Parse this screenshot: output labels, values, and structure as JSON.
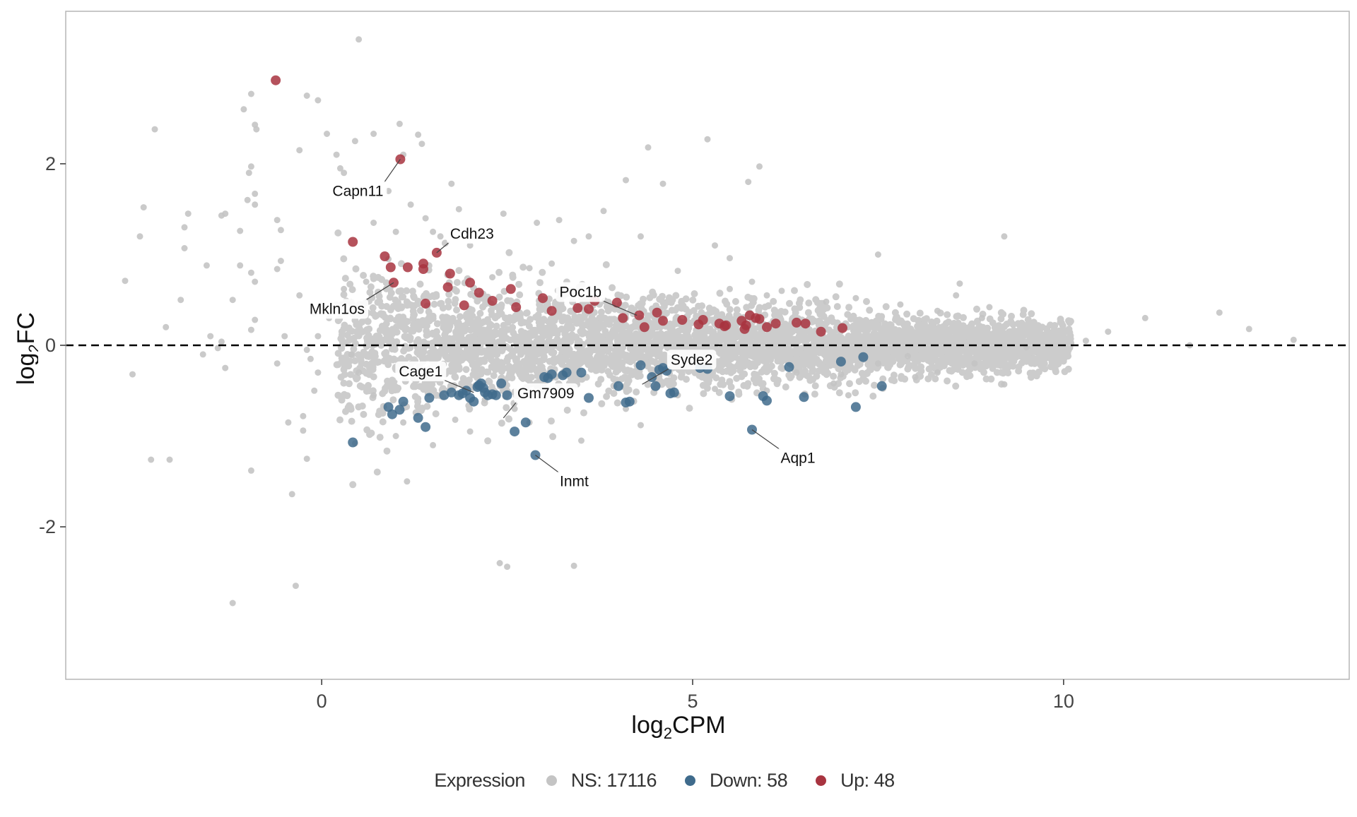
{
  "chart_data": {
    "type": "scatter",
    "xlabel": "log2CPM",
    "ylabel": "log2FC",
    "xlabel_parts": {
      "base": "log",
      "sub": "2",
      "rest": "CPM"
    },
    "ylabel_parts": {
      "base": "log",
      "sub": "2",
      "rest": "FC"
    },
    "xlim": [
      -3.45,
      13.85
    ],
    "ylim": [
      -3.68,
      3.68
    ],
    "xticks": [
      0,
      5,
      10
    ],
    "yticks": [
      -2,
      0,
      2
    ],
    "xtick_labels": [
      "0",
      "5",
      "10"
    ],
    "ytick_labels": [
      "-2",
      "0",
      "2"
    ],
    "threshold_line": {
      "y": 0,
      "style": "dashed"
    },
    "grid": false,
    "legend": {
      "title": "Expression",
      "position": "bottom",
      "entries": [
        {
          "label": "NS: 17116",
          "color": "#c4c4c4"
        },
        {
          "label": "Down: 58",
          "color": "#3f6b8c"
        },
        {
          "label": "Up: 48",
          "color": "#a83440"
        }
      ]
    },
    "series": [
      {
        "name": "NS",
        "color": "#c4c4c4",
        "points": [
          [
            0.5,
            3.37
          ],
          [
            -0.95,
            2.77
          ],
          [
            -1.05,
            2.6
          ],
          [
            -0.9,
            2.43
          ],
          [
            -0.88,
            2.38
          ],
          [
            -2.25,
            2.38
          ],
          [
            1.05,
            2.44
          ],
          [
            0.7,
            2.33
          ],
          [
            -0.2,
            2.75
          ],
          [
            -0.05,
            2.7
          ],
          [
            0.07,
            2.33
          ],
          [
            1.3,
            2.32
          ],
          [
            1.35,
            2.22
          ],
          [
            5.2,
            2.27
          ],
          [
            4.4,
            2.18
          ],
          [
            5.9,
            1.97
          ],
          [
            5.75,
            1.8
          ],
          [
            1.75,
            1.78
          ],
          [
            0.25,
            1.95
          ],
          [
            0.3,
            1.9
          ],
          [
            -1.8,
            1.45
          ],
          [
            -1.3,
            1.45
          ],
          [
            -1.35,
            1.43
          ],
          [
            -2.4,
            1.52
          ],
          [
            -1.85,
            1.3
          ],
          [
            -2.45,
            1.2
          ],
          [
            -0.95,
            1.97
          ],
          [
            -0.98,
            1.9
          ],
          [
            -0.9,
            1.67
          ],
          [
            -1.0,
            1.6
          ],
          [
            -0.9,
            1.55
          ],
          [
            -0.6,
            1.38
          ],
          [
            -0.55,
            1.27
          ],
          [
            -1.1,
            1.26
          ],
          [
            -1.85,
            1.07
          ],
          [
            -1.55,
            0.88
          ],
          [
            -1.1,
            0.88
          ],
          [
            -0.95,
            0.8
          ],
          [
            -2.65,
            0.71
          ],
          [
            -0.9,
            0.7
          ],
          [
            -0.6,
            0.84
          ],
          [
            -0.55,
            0.93
          ],
          [
            -0.9,
            0.28
          ],
          [
            -0.95,
            0.17
          ],
          [
            -1.35,
            0.04
          ],
          [
            -1.4,
            -0.03
          ],
          [
            -1.6,
            -0.1
          ],
          [
            -0.2,
            -0.05
          ],
          [
            -0.05,
            -0.3
          ],
          [
            -0.1,
            -0.5
          ],
          [
            -2.55,
            -0.32
          ],
          [
            -1.3,
            -0.25
          ],
          [
            -0.45,
            -0.85
          ],
          [
            -0.25,
            -0.78
          ],
          [
            -0.25,
            -0.94
          ],
          [
            -2.3,
            -1.26
          ],
          [
            -2.05,
            -1.26
          ],
          [
            -0.95,
            -1.38
          ],
          [
            -0.2,
            -1.25
          ],
          [
            -0.4,
            -1.64
          ],
          [
            -0.35,
            -2.65
          ],
          [
            -1.2,
            -2.84
          ],
          [
            2.4,
            -2.4
          ],
          [
            2.5,
            -2.44
          ],
          [
            3.4,
            -2.43
          ],
          [
            1.15,
            -1.5
          ],
          [
            0.45,
            -1.08
          ],
          [
            1.0,
            -1.0
          ],
          [
            2.0,
            -0.95
          ],
          [
            3.5,
            -1.05
          ],
          [
            4.3,
            -0.88
          ],
          [
            1.8,
            -0.82
          ],
          [
            4.1,
            -0.7
          ],
          [
            2.8,
            -0.85
          ],
          [
            4.6,
            1.78
          ],
          [
            4.1,
            1.82
          ],
          [
            3.8,
            1.48
          ],
          [
            4.3,
            1.2
          ],
          [
            3.2,
            1.38
          ],
          [
            3.6,
            1.2
          ],
          [
            5.3,
            1.1
          ],
          [
            5.5,
            0.96
          ],
          [
            9.2,
            1.2
          ],
          [
            7.5,
            1.0
          ],
          [
            8.6,
            0.68
          ],
          [
            9.0,
            0.42
          ],
          [
            8.55,
            0.55
          ],
          [
            11.1,
            0.3
          ],
          [
            12.1,
            0.36
          ],
          [
            12.5,
            0.18
          ],
          [
            13.1,
            0.06
          ],
          [
            10.6,
            0.15
          ],
          [
            11.7,
            0.0
          ],
          [
            9.5,
            -0.02
          ],
          [
            10.3,
            0.05
          ],
          [
            9.2,
            -0.43
          ],
          [
            8.3,
            -0.3
          ],
          [
            7.5,
            -0.2
          ],
          [
            7.0,
            -0.32
          ],
          [
            7.9,
            -0.12
          ],
          [
            6.4,
            -0.3
          ],
          [
            6.8,
            0.48
          ],
          [
            7.2,
            0.52
          ],
          [
            7.8,
            0.45
          ],
          [
            8.3,
            0.38
          ],
          [
            8.9,
            0.3
          ],
          [
            6.2,
            0.6
          ],
          [
            6.0,
            0.55
          ],
          [
            5.5,
            0.62
          ],
          [
            5.8,
            0.7
          ],
          [
            4.8,
            0.82
          ],
          [
            2.3,
            0.75
          ],
          [
            2.8,
            0.85
          ],
          [
            3.1,
            0.9
          ],
          [
            2.0,
            1.1
          ],
          [
            1.6,
            1.2
          ],
          [
            1.4,
            1.4
          ],
          [
            1.5,
            1.25
          ],
          [
            1.0,
            1.25
          ],
          [
            0.7,
            1.35
          ],
          [
            0.9,
            0.95
          ],
          [
            0.6,
            0.7
          ],
          [
            0.3,
            0.62
          ],
          [
            0.2,
            0.45
          ],
          [
            0.1,
            0.3
          ],
          [
            0.4,
            -0.1
          ],
          [
            0.5,
            -0.3
          ],
          [
            0.7,
            -0.55
          ],
          [
            1.1,
            -0.85
          ],
          [
            1.5,
            -1.1
          ],
          [
            2.2,
            -0.6
          ],
          [
            2.6,
            -0.7
          ],
          [
            3.0,
            -0.5
          ],
          [
            4.8,
            -0.55
          ],
          [
            5.3,
            -0.48
          ],
          [
            6.0,
            -0.5
          ],
          [
            6.9,
            -0.42
          ],
          [
            7.1,
            -0.55
          ],
          [
            8.0,
            -0.35
          ],
          [
            8.8,
            -0.2
          ],
          [
            -0.05,
            0.1
          ],
          [
            -0.1,
            0.35
          ],
          [
            -0.15,
            -0.15
          ],
          [
            -0.5,
            0.1
          ],
          [
            -0.6,
            -0.2
          ],
          [
            -1.9,
            0.5
          ],
          [
            -2.1,
            0.2
          ],
          [
            -1.5,
            0.1
          ],
          [
            -1.2,
            0.5
          ],
          [
            -0.3,
            0.55
          ],
          [
            1.1,
            2.1
          ],
          [
            0.45,
            2.25
          ],
          [
            0.2,
            2.1
          ],
          [
            -0.3,
            2.15
          ],
          [
            0.9,
            1.7
          ],
          [
            1.2,
            1.55
          ],
          [
            1.85,
            1.5
          ],
          [
            2.45,
            1.45
          ],
          [
            2.9,
            1.35
          ],
          [
            3.4,
            1.15
          ]
        ]
      },
      {
        "name": "Down",
        "color": "#3f6b8c",
        "points": [
          [
            0.42,
            -1.07
          ],
          [
            0.9,
            -0.68
          ],
          [
            0.95,
            -0.76
          ],
          [
            1.05,
            -0.71
          ],
          [
            1.1,
            -0.62
          ],
          [
            1.3,
            -0.8
          ],
          [
            1.4,
            -0.9
          ],
          [
            1.45,
            -0.58
          ],
          [
            1.65,
            -0.55
          ],
          [
            1.75,
            -0.52
          ],
          [
            1.85,
            -0.55
          ],
          [
            1.95,
            -0.5
          ],
          [
            2.0,
            -0.58
          ],
          [
            2.05,
            -0.62
          ],
          [
            2.1,
            -0.46
          ],
          [
            2.15,
            -0.42
          ],
          [
            2.2,
            -0.52
          ],
          [
            2.3,
            -0.54
          ],
          [
            2.35,
            -0.55
          ],
          [
            2.42,
            -0.42
          ],
          [
            2.5,
            -0.55
          ],
          [
            2.6,
            -0.95
          ],
          [
            2.75,
            -0.85
          ],
          [
            2.88,
            -1.21
          ],
          [
            3.0,
            -0.35
          ],
          [
            3.1,
            -0.32
          ],
          [
            3.3,
            -0.3
          ],
          [
            3.5,
            -0.3
          ],
          [
            3.6,
            -0.58
          ],
          [
            4.0,
            -0.45
          ],
          [
            4.1,
            -0.63
          ],
          [
            4.3,
            -0.22
          ],
          [
            4.45,
            -0.35
          ],
          [
            4.5,
            -0.45
          ],
          [
            4.6,
            -0.25
          ],
          [
            4.65,
            -0.28
          ],
          [
            4.7,
            -0.53
          ],
          [
            4.75,
            -0.52
          ],
          [
            5.1,
            -0.25
          ],
          [
            5.2,
            -0.26
          ],
          [
            5.5,
            -0.56
          ],
          [
            5.8,
            -0.93
          ],
          [
            5.95,
            -0.56
          ],
          [
            6.0,
            -0.61
          ],
          [
            6.3,
            -0.24
          ],
          [
            6.5,
            -0.57
          ],
          [
            7.0,
            -0.18
          ],
          [
            7.2,
            -0.68
          ],
          [
            7.3,
            -0.13
          ],
          [
            7.55,
            -0.45
          ],
          [
            2.12,
            -0.44
          ],
          [
            1.9,
            -0.53
          ],
          [
            2.18,
            -0.47
          ],
          [
            2.24,
            -0.55
          ],
          [
            3.05,
            -0.36
          ],
          [
            3.25,
            -0.33
          ],
          [
            4.55,
            -0.27
          ],
          [
            4.15,
            -0.62
          ]
        ]
      },
      {
        "name": "Up",
        "color": "#a83440",
        "points": [
          [
            -0.62,
            2.92
          ],
          [
            1.06,
            2.05
          ],
          [
            0.42,
            1.14
          ],
          [
            0.85,
            0.98
          ],
          [
            0.93,
            0.86
          ],
          [
            0.97,
            0.69
          ],
          [
            1.16,
            0.86
          ],
          [
            1.37,
            0.84
          ],
          [
            1.37,
            0.9
          ],
          [
            1.55,
            1.02
          ],
          [
            1.4,
            0.46
          ],
          [
            1.7,
            0.64
          ],
          [
            1.73,
            0.79
          ],
          [
            1.92,
            0.44
          ],
          [
            2.0,
            0.69
          ],
          [
            2.12,
            0.58
          ],
          [
            2.3,
            0.49
          ],
          [
            2.55,
            0.62
          ],
          [
            2.62,
            0.42
          ],
          [
            2.98,
            0.52
          ],
          [
            3.1,
            0.38
          ],
          [
            3.45,
            0.41
          ],
          [
            3.6,
            0.4
          ],
          [
            3.68,
            0.49
          ],
          [
            3.98,
            0.47
          ],
          [
            4.06,
            0.3
          ],
          [
            4.28,
            0.33
          ],
          [
            4.35,
            0.2
          ],
          [
            4.52,
            0.36
          ],
          [
            4.6,
            0.27
          ],
          [
            4.86,
            0.28
          ],
          [
            5.08,
            0.23
          ],
          [
            5.14,
            0.28
          ],
          [
            5.36,
            0.24
          ],
          [
            5.43,
            0.21
          ],
          [
            5.66,
            0.27
          ],
          [
            5.7,
            0.18
          ],
          [
            5.77,
            0.33
          ],
          [
            5.9,
            0.29
          ],
          [
            6.0,
            0.2
          ],
          [
            6.12,
            0.24
          ],
          [
            6.4,
            0.25
          ],
          [
            6.52,
            0.24
          ],
          [
            6.73,
            0.15
          ],
          [
            7.02,
            0.19
          ],
          [
            5.72,
            0.22
          ],
          [
            5.45,
            0.22
          ],
          [
            5.85,
            0.3
          ]
        ]
      }
    ],
    "annotations": [
      {
        "label": "Capn11",
        "x": 1.06,
        "y": 2.05
      },
      {
        "label": "Cdh23",
        "x": 1.55,
        "y": 1.02
      },
      {
        "label": "Mkln1os",
        "x": 0.97,
        "y": 0.69
      },
      {
        "label": "Poc1b",
        "x": 4.25,
        "y": 0.33
      },
      {
        "label": "Cage1",
        "x": 2.05,
        "y": -0.52
      },
      {
        "label": "Gm7909",
        "x": 2.45,
        "y": -0.8
      },
      {
        "label": "Syde2",
        "x": 4.32,
        "y": -0.43
      },
      {
        "label": "Inmt",
        "x": 2.88,
        "y": -1.21
      },
      {
        "label": "Aqp1",
        "x": 5.8,
        "y": -0.93
      }
    ]
  }
}
